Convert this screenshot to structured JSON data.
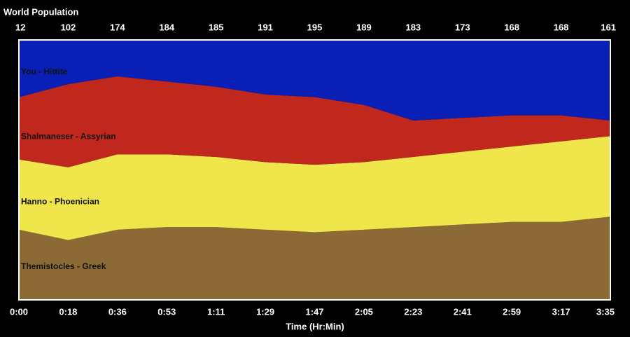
{
  "chart_data": {
    "type": "stacked_area_percent",
    "title": "World Population",
    "x_label": "Time (Hr:Min)",
    "categories": [
      "0:00",
      "0:18",
      "0:36",
      "0:53",
      "1:11",
      "1:29",
      "1:47",
      "2:05",
      "2:23",
      "2:41",
      "2:59",
      "3:17",
      "3:35"
    ],
    "totals": [
      12,
      102,
      174,
      184,
      185,
      191,
      195,
      189,
      183,
      173,
      168,
      168,
      161
    ],
    "ylim": [
      0,
      100
    ],
    "series": [
      {
        "name": "Themistocles - Greek",
        "color": "#8c6a35",
        "values": [
          27,
          23,
          27,
          28,
          28,
          27,
          26,
          27,
          28,
          29,
          30,
          30,
          32
        ]
      },
      {
        "name": "Hanno - Phoenician",
        "color": "#f0e54a",
        "values": [
          27,
          28,
          29,
          28,
          27,
          26,
          26,
          26,
          27,
          28,
          29,
          31,
          31
        ]
      },
      {
        "name": "Shalmaneser - Assyrian",
        "color": "#c0281e",
        "values": [
          24,
          32,
          30,
          28,
          27,
          26,
          26,
          22,
          14,
          13,
          12,
          10,
          6
        ]
      },
      {
        "name": "You - Hittite",
        "color": "#0a1fb5",
        "values": [
          22,
          17,
          14,
          16,
          18,
          21,
          22,
          25,
          31,
          30,
          29,
          29,
          31
        ]
      }
    ]
  }
}
